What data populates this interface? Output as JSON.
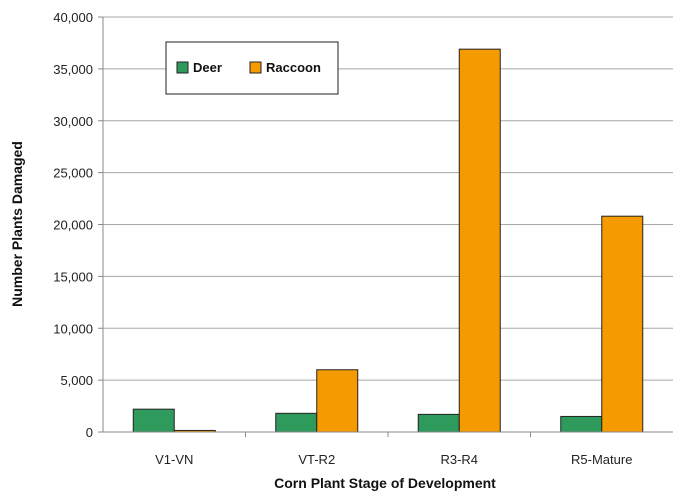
{
  "chart_data": {
    "type": "bar",
    "categories": [
      "V1-VN",
      "VT-R2",
      "R3-R4",
      "R5-Mature"
    ],
    "series": [
      {
        "name": "Deer",
        "color": "#2e9a5c",
        "values": [
          2200,
          1800,
          1700,
          1500
        ]
      },
      {
        "name": "Raccoon",
        "color": "#f59a00",
        "values": [
          150,
          6000,
          36900,
          20800
        ]
      }
    ],
    "xlabel": "Corn Plant Stage of Development",
    "ylabel": "Number Plants Damaged",
    "ylim": [
      0,
      40000
    ],
    "yticks": [
      "0",
      "5,000",
      "10,000",
      "15,000",
      "20,000",
      "25,000",
      "30,000",
      "35,000",
      "40,000"
    ],
    "grid": true,
    "legend_position": "top-left"
  }
}
